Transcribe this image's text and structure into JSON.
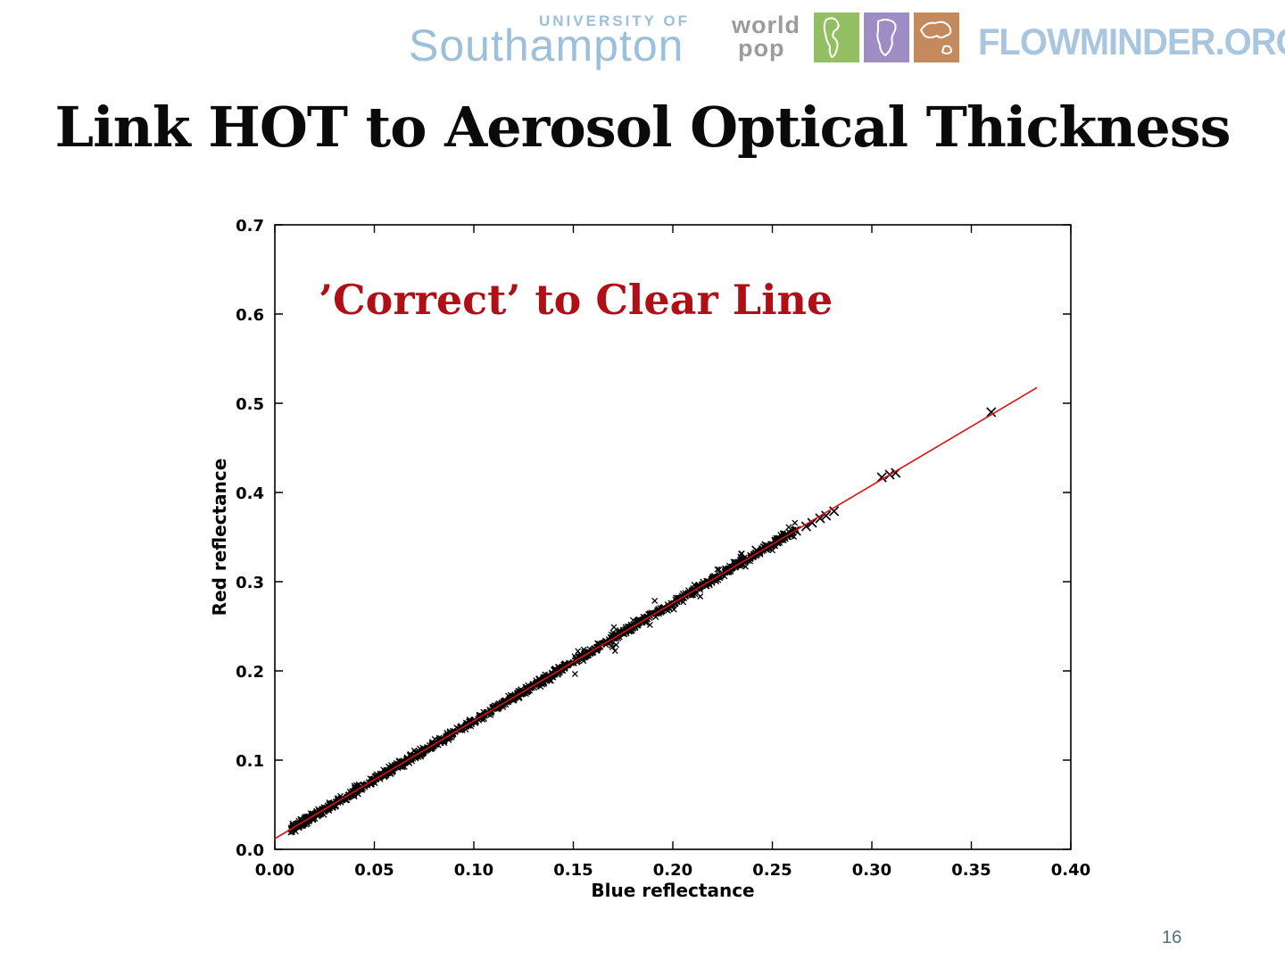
{
  "header": {
    "university_small": "UNIVERSITY OF",
    "university_name": "Southampton",
    "worldpop_line1": "world",
    "worldpop_line2": "pop",
    "flowminder": "FLOWMINDER.ORG",
    "southampton_color": "#9cc0da",
    "flowminder_color": "#a9c6e0",
    "logo_square_colors": {
      "green": "#93be62",
      "purple": "#9c8ec5",
      "orange": "#c48a5e"
    }
  },
  "title": "Link HOT to Aerosol Optical Thickness",
  "page_number": "16",
  "chart_data": {
    "type": "scatter",
    "title": "",
    "xlabel": "Blue reflectance",
    "ylabel": "Red reflectance",
    "xlim": [
      0.0,
      0.4
    ],
    "ylim": [
      0.0,
      0.7
    ],
    "xticks": [
      0.0,
      0.05,
      0.1,
      0.15,
      0.2,
      0.25,
      0.3,
      0.35,
      0.4
    ],
    "yticks": [
      0.0,
      0.1,
      0.2,
      0.3,
      0.4,
      0.5,
      0.6,
      0.7
    ],
    "grid": false,
    "legend": "none",
    "annotation": {
      "text": "’Correct’ to Clear Line",
      "color": "#b01015",
      "x": 0.022,
      "y": 0.6
    },
    "marker": "x",
    "marker_color": "#000000",
    "fit_line": {
      "color": "#dd1111",
      "intercept": 0.012,
      "slope": 1.32,
      "x_start": 0.0,
      "x_end": 0.383
    },
    "scatter": {
      "dense_band": {
        "x_min": 0.008,
        "x_max": 0.262,
        "count": 1400,
        "noise_sd": 0.0022,
        "description": "dense band of x-markers lying on the fit line y = 0.012 + 1.32x"
      },
      "sparse_points": [
        [
          0.242,
          0.335
        ],
        [
          0.247,
          0.34
        ],
        [
          0.252,
          0.345
        ],
        [
          0.257,
          0.352
        ],
        [
          0.262,
          0.357
        ],
        [
          0.267,
          0.362
        ],
        [
          0.27,
          0.366
        ],
        [
          0.274,
          0.371
        ],
        [
          0.277,
          0.374
        ],
        [
          0.281,
          0.379
        ],
        [
          0.305,
          0.417
        ],
        [
          0.309,
          0.42
        ],
        [
          0.312,
          0.422
        ],
        [
          0.36,
          0.49
        ]
      ]
    }
  }
}
